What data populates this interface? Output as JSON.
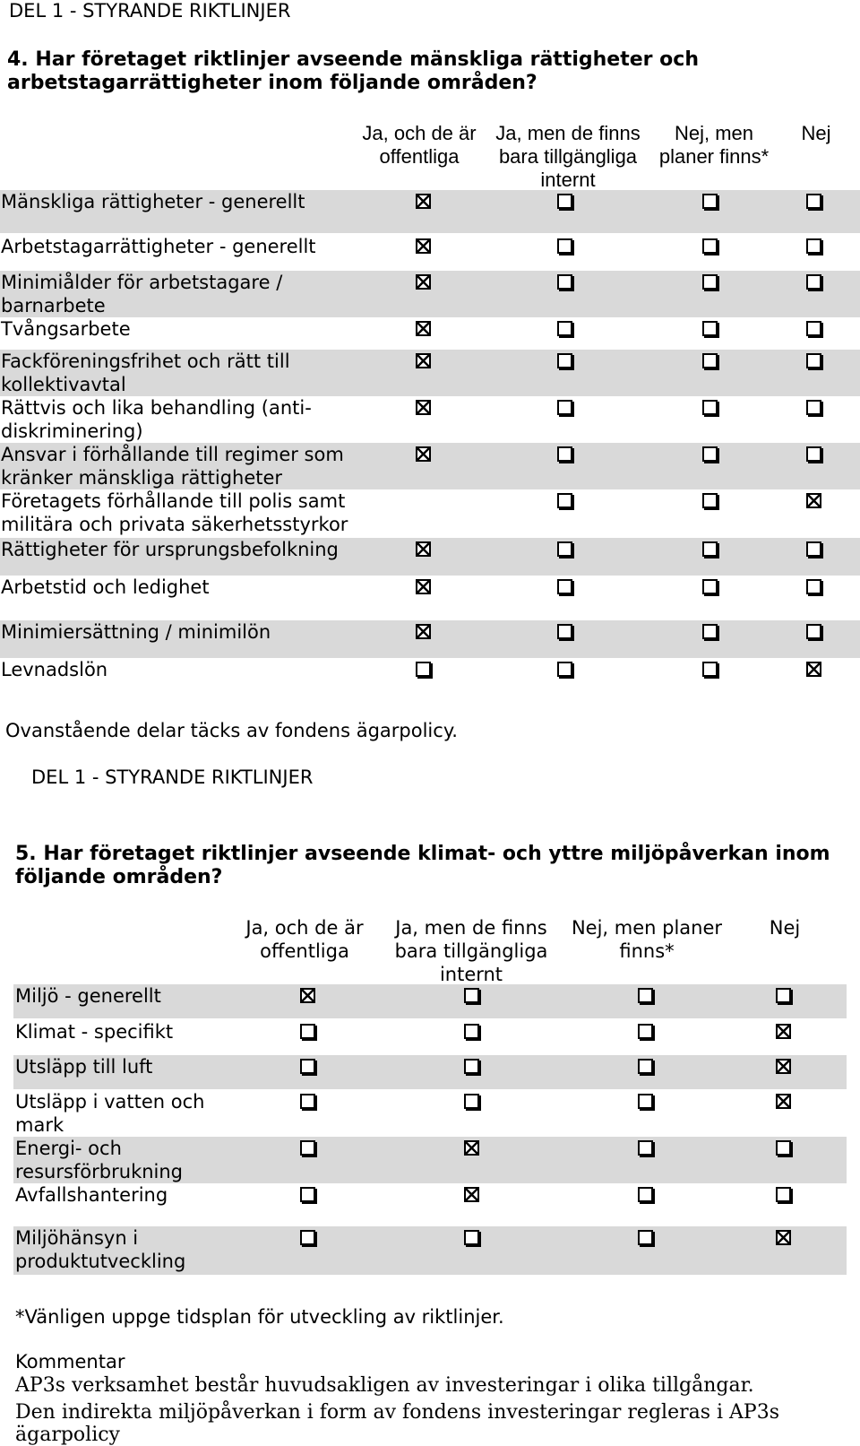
{
  "section1": {
    "header": "DEL 1 - STYRANDE RIKTLINJER",
    "question": "4. Har företaget riktlinjer avseende mänskliga rättigheter och arbetstagarrättigheter inom följande områden?",
    "columns": [
      "Ja, och de är offentliga",
      "Ja, men de finns bara tillgängliga internt",
      "Nej, men planer finns*",
      "Nej"
    ],
    "rows": [
      {
        "label": "Mänskliga rättigheter - generellt",
        "checks": [
          true,
          false,
          false,
          false
        ]
      },
      {
        "label": "Arbetstagarrättigheter - generellt",
        "checks": [
          true,
          false,
          false,
          false
        ]
      },
      {
        "label": "Minimiålder för arbetstagare / barnarbete",
        "checks": [
          true,
          false,
          false,
          false
        ]
      },
      {
        "label": "Tvångsarbete",
        "checks": [
          true,
          false,
          false,
          false
        ]
      },
      {
        "label": "Fackföreningsfrihet och rätt till kollektivavtal",
        "checks": [
          true,
          false,
          false,
          false
        ]
      },
      {
        "label": "Rättvis och lika behandling (anti-diskriminering)",
        "checks": [
          true,
          false,
          false,
          false
        ]
      },
      {
        "label": "Ansvar i förhållande till regimer som kränker mänskliga rättigheter",
        "checks": [
          true,
          false,
          false,
          false
        ]
      },
      {
        "label": "Företagets förhållande till polis samt militära och privata säkerhetsstyrkor",
        "checks": [
          null,
          false,
          false,
          true
        ]
      },
      {
        "label": "Rättigheter för ursprungsbefolkning",
        "checks": [
          true,
          false,
          false,
          false
        ]
      },
      {
        "label": "Arbetstid och ledighet",
        "checks": [
          true,
          false,
          false,
          false
        ]
      },
      {
        "label": "Minimiersättning / minimilön",
        "checks": [
          true,
          false,
          false,
          false
        ]
      },
      {
        "label": "Levnadslön",
        "checks": [
          false,
          false,
          false,
          true
        ]
      }
    ],
    "note": "Ovanstående delar täcks av fondens ägarpolicy."
  },
  "section2": {
    "header": "DEL 1 - STYRANDE RIKTLINJER",
    "question": "5. Har företaget riktlinjer avseende klimat- och yttre miljöpåverkan inom följande områden?",
    "columns": [
      "Ja, och de är offentliga",
      "Ja, men de finns bara tillgängliga internt",
      "Nej, men planer finns*",
      "Nej"
    ],
    "rows": [
      {
        "label": "Miljö - generellt",
        "checks": [
          true,
          false,
          false,
          false
        ]
      },
      {
        "label": "Klimat - specifikt",
        "checks": [
          false,
          false,
          false,
          true
        ]
      },
      {
        "label": "Utsläpp till luft",
        "checks": [
          false,
          false,
          false,
          true
        ]
      },
      {
        "label": "Utsläpp i vatten och mark",
        "checks": [
          false,
          false,
          false,
          true
        ]
      },
      {
        "label": "Energi- och resursförbrukning",
        "checks": [
          false,
          true,
          false,
          false
        ]
      },
      {
        "label": "Avfallshantering",
        "checks": [
          false,
          true,
          false,
          false
        ]
      },
      {
        "label": "Miljöhänsyn i produktutveckling",
        "checks": [
          false,
          false,
          false,
          true
        ]
      }
    ],
    "footnote": "*Vänligen uppge tidsplan för utveckling av riktlinjer.",
    "comment_label": "Kommentar",
    "comment_lines": [
      "AP3s verksamhet består huvudsakligen av investeringar i olika tillgångar.",
      "Den indirekta miljöpåverkan i form av fondens investeringar regleras i AP3s ägarpolicy"
    ]
  }
}
